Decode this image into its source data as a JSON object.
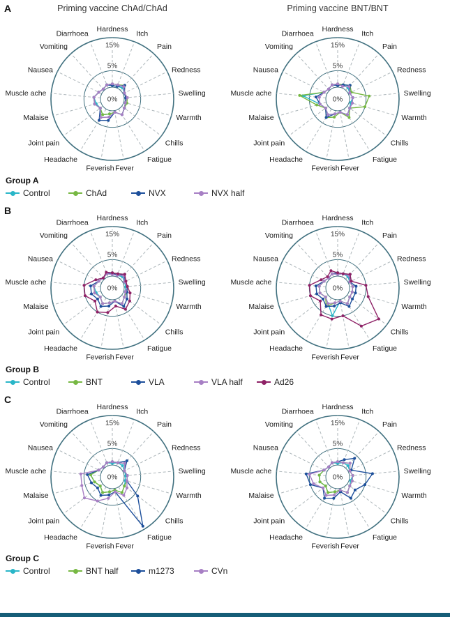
{
  "page": {
    "bottom_bar_color": "#155d77"
  },
  "sections": [
    {
      "letter": "A",
      "titles": [
        "Priming vaccine ChAd/ChAd",
        "Priming vaccine BNT/BNT"
      ],
      "legend": {
        "label": "Group A",
        "entries": [
          {
            "name": "Control",
            "color": "#29b6c8"
          },
          {
            "name": "ChAd",
            "color": "#77b843"
          },
          {
            "name": "NVX",
            "color": "#1d4f9b"
          },
          {
            "name": "NVX half",
            "color": "#a77fc4"
          }
        ]
      }
    },
    {
      "letter": "B",
      "titles": [
        "",
        ""
      ],
      "legend": {
        "label": "Group B",
        "entries": [
          {
            "name": "Control",
            "color": "#29b6c8"
          },
          {
            "name": "BNT",
            "color": "#77b843"
          },
          {
            "name": "VLA",
            "color": "#1d4f9b"
          },
          {
            "name": "VLA half",
            "color": "#a77fc4"
          },
          {
            "name": "Ad26",
            "color": "#8e2166"
          }
        ]
      }
    },
    {
      "letter": "C",
      "titles": [
        "",
        ""
      ],
      "legend": {
        "label": "Group C",
        "entries": [
          {
            "name": "Control",
            "color": "#29b6c8"
          },
          {
            "name": "BNT half",
            "color": "#77b843"
          },
          {
            "name": "m1273",
            "color": "#1d4f9b"
          },
          {
            "name": "CVn",
            "color": "#a77fc4"
          }
        ]
      }
    }
  ],
  "chart_data": {
    "type": "radar",
    "categories": [
      "Hardness",
      "Itch",
      "Pain",
      "Redness",
      "Swelling",
      "Warmth",
      "Chills",
      "Fatigue",
      "Fever",
      "Feverish",
      "Headache",
      "Joint pain",
      "Malaise",
      "Muscle ache",
      "Nausea",
      "Vomiting",
      "Diarrhoea"
    ],
    "radial_ticks": [
      "0%",
      "5%",
      "15%"
    ],
    "rlim": [
      0,
      15
    ],
    "grid": "dashed-spokes",
    "legend_position": "below-each-section",
    "charts": [
      {
        "section": "A",
        "title": "Priming vaccine ChAd/ChAd",
        "series": [
          {
            "name": "Control",
            "color": "#29b6c8",
            "values": [
              0.5,
              0.5,
              1,
              0.5,
              0.5,
              0.5,
              1,
              2,
              0.5,
              1,
              2,
              1,
              1.5,
              2,
              1,
              0.5,
              1
            ]
          },
          {
            "name": "ChAd",
            "color": "#77b843",
            "values": [
              1,
              1,
              2,
              0.5,
              1,
              1,
              1,
              2,
              0.5,
              1,
              2,
              1,
              2,
              2,
              1,
              0.5,
              1
            ]
          },
          {
            "name": "NVX",
            "color": "#1d4f9b",
            "values": [
              0.5,
              0.5,
              2,
              0.5,
              0.5,
              0.5,
              1,
              2,
              0.5,
              3,
              4,
              1,
              2,
              2,
              1,
              0.5,
              1
            ]
          },
          {
            "name": "NVX half",
            "color": "#a77fc4",
            "values": [
              1,
              1,
              1.5,
              0.5,
              1,
              0.5,
              1,
              2,
              0.5,
              2,
              3,
              1,
              2,
              2,
              1,
              0.5,
              1
            ]
          }
        ]
      },
      {
        "section": "A",
        "title": "Priming vaccine BNT/BNT",
        "series": [
          {
            "name": "Control",
            "color": "#29b6c8",
            "values": [
              0.5,
              1,
              1,
              0.5,
              1,
              0.5,
              1,
              2,
              0.5,
              1,
              2,
              1,
              2,
              7,
              1,
              0.5,
              1
            ]
          },
          {
            "name": "ChAd",
            "color": "#77b843",
            "values": [
              1,
              1,
              2,
              1,
              6,
              5,
              1,
              3,
              0.5,
              2,
              3,
              1,
              3,
              8,
              1,
              0.5,
              1
            ]
          },
          {
            "name": "NVX",
            "color": "#1d4f9b",
            "values": [
              0.5,
              1,
              2,
              0.5,
              1,
              1,
              1,
              2,
              0.5,
              1,
              3,
              1,
              2,
              3,
              1,
              0.5,
              1
            ]
          },
          {
            "name": "NVX half",
            "color": "#a77fc4",
            "values": [
              1,
              0.5,
              1.5,
              0.5,
              1,
              1,
              1,
              2,
              0.5,
              1,
              2,
              1,
              2,
              2,
              1,
              0.5,
              1
            ]
          }
        ]
      },
      {
        "section": "B",
        "title": "Priming vaccine ChAd/ChAd",
        "series": [
          {
            "name": "Control",
            "color": "#29b6c8",
            "values": [
              0.5,
              0.5,
              1,
              0.5,
              0.5,
              0.5,
              1,
              2,
              0.5,
              1,
              2,
              1,
              1.5,
              2,
              1,
              0.5,
              1
            ]
          },
          {
            "name": "BNT",
            "color": "#77b843",
            "values": [
              1,
              1,
              2,
              0.5,
              1,
              1,
              1,
              2,
              0.5,
              1,
              2,
              1,
              2,
              2,
              1,
              0.5,
              1
            ]
          },
          {
            "name": "VLA",
            "color": "#1d4f9b",
            "values": [
              1,
              0.5,
              2,
              0.5,
              1,
              1,
              2,
              3,
              0.5,
              2,
              3,
              2,
              3,
              3,
              1,
              0.5,
              1
            ]
          },
          {
            "name": "VLA half",
            "color": "#a77fc4",
            "values": [
              0.5,
              0.5,
              1.5,
              0.5,
              1,
              0.5,
              1,
              2,
              0.5,
              1,
              2,
              1,
              2,
              2,
              1,
              0.5,
              1
            ]
          },
          {
            "name": "Ad26",
            "color": "#8e2166",
            "values": [
              1,
              1,
              2,
              1,
              1,
              2,
              3,
              4,
              2,
              4,
              5,
              3,
              5,
              5,
              2,
              0.5,
              1.5
            ]
          }
        ]
      },
      {
        "section": "B",
        "title": "Priming vaccine BNT/BNT",
        "series": [
          {
            "name": "Control",
            "color": "#29b6c8",
            "values": [
              0.5,
              1,
              1,
              0.5,
              1,
              1,
              1,
              2,
              0.5,
              5,
              2,
              1,
              2,
              2,
              1,
              0.5,
              1
            ]
          },
          {
            "name": "BNT",
            "color": "#77b843",
            "values": [
              1,
              1,
              2,
              0.5,
              1,
              1,
              1,
              2,
              0.5,
              1,
              3,
              1,
              2,
              2,
              1,
              0.5,
              1
            ]
          },
          {
            "name": "VLA",
            "color": "#1d4f9b",
            "values": [
              1,
              1,
              2,
              0.5,
              2,
              2,
              2,
              3,
              1,
              2,
              3,
              2,
              3,
              3,
              1,
              0.5,
              1
            ]
          },
          {
            "name": "VLA half",
            "color": "#a77fc4",
            "values": [
              0.5,
              1,
              1.5,
              0.5,
              1,
              1,
              1,
              2,
              0.5,
              1,
              2,
              1,
              2,
              2,
              1,
              0.5,
              1
            ]
          },
          {
            "name": "Ad26",
            "color": "#8e2166",
            "values": [
              1,
              1,
              2,
              1,
              5,
              6,
              12,
              10,
              5,
              6,
              6,
              3,
              5,
              5,
              2,
              1,
              2
            ]
          }
        ]
      },
      {
        "section": "C",
        "title": "Priming vaccine ChAd/ChAd",
        "series": [
          {
            "name": "Control",
            "color": "#29b6c8",
            "values": [
              0.5,
              1,
              1,
              0.5,
              0.5,
              0.5,
              1,
              2,
              0.5,
              1,
              2,
              1,
              2,
              3,
              1,
              0.5,
              1
            ]
          },
          {
            "name": "BNT half",
            "color": "#77b843",
            "values": [
              1,
              1,
              2,
              0.5,
              1,
              1,
              1,
              2,
              0.5,
              1,
              2,
              1,
              2,
              3,
              1,
              0.5,
              1
            ]
          },
          {
            "name": "m1273",
            "color": "#1d4f9b",
            "values": [
              1,
              1,
              3,
              0.5,
              1,
              1,
              6,
              14,
              1,
              2,
              3,
              2,
              3,
              4,
              1,
              0.5,
              1
            ]
          },
          {
            "name": "CVn",
            "color": "#a77fc4",
            "values": [
              1,
              1,
              2,
              0.5,
              1,
              1,
              2,
              3,
              1,
              3,
              5,
              7,
              6,
              6,
              1,
              0.5,
              1
            ]
          }
        ]
      },
      {
        "section": "C",
        "title": "Priming vaccine BNT/BNT",
        "series": [
          {
            "name": "Control",
            "color": "#29b6c8",
            "values": [
              0.5,
              1,
              1,
              0.5,
              1,
              0.5,
              1,
              2,
              0.5,
              1,
              2,
              1,
              2,
              2,
              1,
              0.5,
              1
            ]
          },
          {
            "name": "BNT half",
            "color": "#77b843",
            "values": [
              1,
              1,
              2,
              0.5,
              1,
              1,
              1,
              2,
              0.5,
              1,
              2,
              1,
              2,
              2,
              1,
              0.5,
              1
            ]
          },
          {
            "name": "m1273",
            "color": "#1d4f9b",
            "values": [
              1,
              2,
              4,
              1,
              7,
              5,
              3,
              4,
              1,
              3,
              4,
              2,
              5,
              6,
              1,
              0.5,
              1
            ]
          },
          {
            "name": "CVn",
            "color": "#a77fc4",
            "values": [
              1,
              1,
              2,
              0.5,
              1,
              1,
              1,
              2,
              0.5,
              2,
              3,
              2,
              4,
              5,
              1,
              0.5,
              1
            ]
          }
        ]
      }
    ]
  }
}
